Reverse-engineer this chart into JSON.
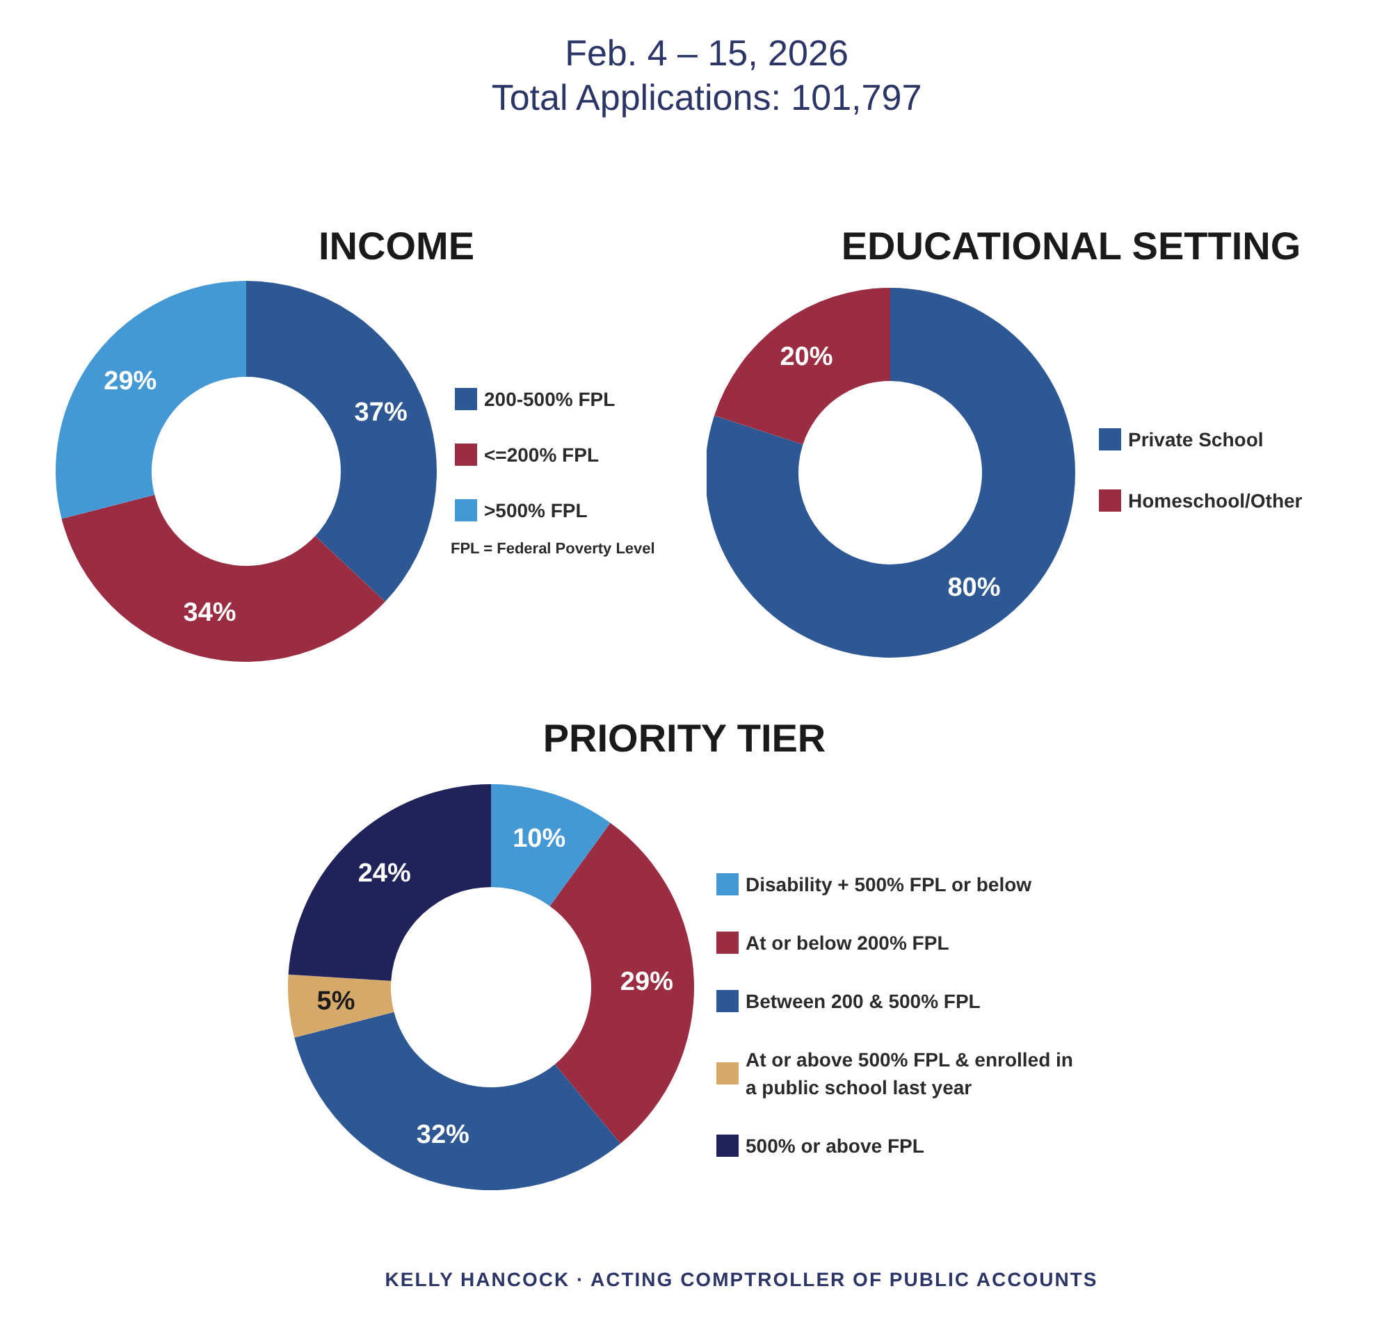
{
  "chart_data": [
    {
      "type": "donut",
      "title": "INCOME",
      "categories": [
        "200-500% FPL",
        "<=200% FPL",
        ">500% FPL"
      ],
      "values": [
        37,
        34,
        29
      ],
      "value_labels": [
        "37%",
        "34%",
        "29%"
      ],
      "colors": [
        "#2e5893",
        "#9b2d42",
        "#4498d3"
      ],
      "legend": "right",
      "annotations": [
        "Feb. 4 – 15, 2026",
        "Total Applications: 101,797",
        "FPL = Federal Poverty Level"
      ]
    },
    {
      "type": "donut",
      "title": "EDUCATIONAL SETTING",
      "categories": [
        "Private School",
        "Homeschool/Other"
      ],
      "values": [
        80,
        20
      ],
      "value_labels": [
        "80%",
        "20%"
      ],
      "colors": [
        "#2e5893",
        "#9b2d42"
      ],
      "legend": "right"
    },
    {
      "type": "donut",
      "title": "PRIORITY TIER",
      "categories": [
        "Disability + 500% FPL or below",
        "At or below 200% FPL",
        "Between 200 & 500% FPL",
        "At or above 500% FPL & enrolled in a public school last year",
        "500% or above FPL"
      ],
      "values": [
        10,
        29,
        32,
        5,
        24
      ],
      "value_labels": [
        "10%",
        "29%",
        "32%",
        "5%",
        "24%"
      ],
      "colors": [
        "#4498d3",
        "#9b2d42",
        "#2e5893",
        "#d4a96a",
        "#20235a"
      ],
      "legend": "right",
      "annotations": [
        "KELLY HANCOCK  ·  ACTING COMPTROLLER OF PUBLIC ACCOUNTS"
      ]
    }
  ]
}
